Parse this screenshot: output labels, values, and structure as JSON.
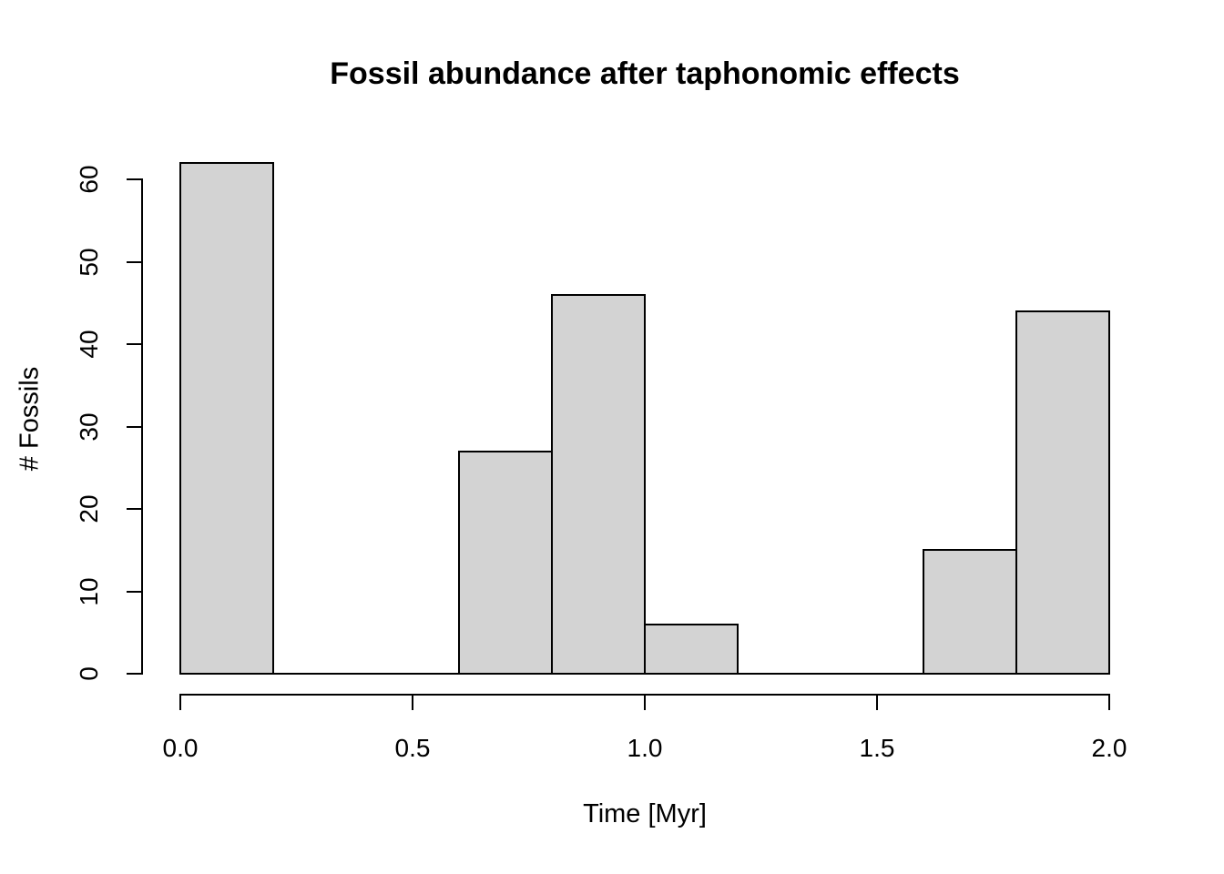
{
  "chart_data": {
    "type": "bar",
    "subtype": "histogram",
    "title": "Fossil abundance after taphonomic effects",
    "xlabel": "Time [Myr]",
    "ylabel": "# Fossils",
    "xlim": [
      0.0,
      2.0
    ],
    "ylim": [
      0,
      62
    ],
    "x_ticks": [
      0.0,
      0.5,
      1.0,
      1.5,
      2.0
    ],
    "x_tick_labels": [
      "0.0",
      "0.5",
      "1.0",
      "1.5",
      "2.0"
    ],
    "y_ticks": [
      0,
      10,
      20,
      30,
      40,
      50,
      60
    ],
    "y_tick_labels": [
      "0",
      "10",
      "20",
      "30",
      "40",
      "50",
      "60"
    ],
    "bin_width": 0.2,
    "bins": [
      {
        "x0": 0.0,
        "x1": 0.2,
        "count": 62
      },
      {
        "x0": 0.2,
        "x1": 0.4,
        "count": 0
      },
      {
        "x0": 0.4,
        "x1": 0.6,
        "count": 0
      },
      {
        "x0": 0.6,
        "x1": 0.8,
        "count": 27
      },
      {
        "x0": 0.8,
        "x1": 1.0,
        "count": 46
      },
      {
        "x0": 1.0,
        "x1": 1.2,
        "count": 6
      },
      {
        "x0": 1.2,
        "x1": 1.4,
        "count": 0
      },
      {
        "x0": 1.4,
        "x1": 1.6,
        "count": 0
      },
      {
        "x0": 1.6,
        "x1": 1.8,
        "count": 15
      },
      {
        "x0": 1.8,
        "x1": 2.0,
        "count": 44
      }
    ],
    "grid": false,
    "legend": null,
    "colors": {
      "bar_fill": "#d3d3d3",
      "bar_stroke": "#000000",
      "axis": "#000000",
      "text": "#000000",
      "background": "#ffffff"
    }
  }
}
